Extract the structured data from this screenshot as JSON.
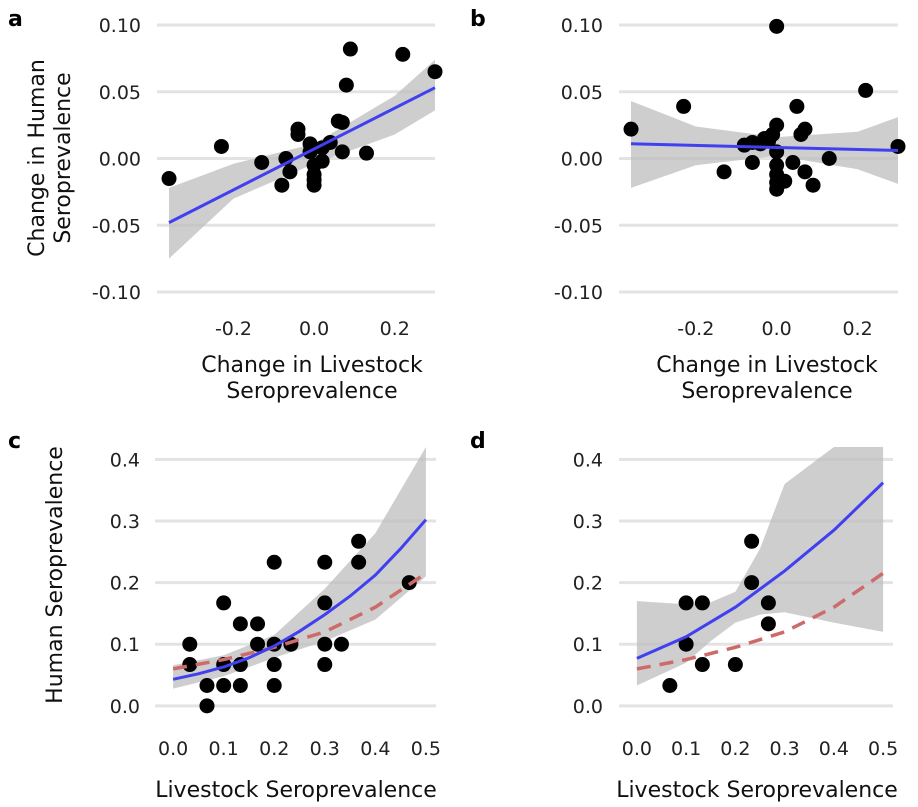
{
  "colors": {
    "fit_line": "#4040f0",
    "ref_line": "#cd6b6b",
    "ribbon": "#bdbdbd",
    "point": "#000000",
    "grid": "#e3e3e3"
  },
  "chart_data": [
    {
      "panel_label": "a",
      "type": "scatter",
      "xlabel": [
        "Change in Livestock",
        "Seroprevalence"
      ],
      "ylabel": [
        "Change in Human",
        "Seroprevalence"
      ],
      "xlim": [
        -0.37,
        0.3
      ],
      "ylim": [
        -0.1,
        0.1
      ],
      "xticks": [
        -0.2,
        0.0,
        0.2
      ],
      "xtick_labels": [
        "-0.2",
        "0.0",
        "0.2"
      ],
      "yticks": [
        -0.1,
        -0.05,
        0.0,
        0.05,
        0.1
      ],
      "ytick_labels": [
        "-0.10",
        "-0.05",
        "0.00",
        "0.05",
        "0.10"
      ],
      "points": [
        [
          -0.36,
          -0.015
        ],
        [
          -0.23,
          0.009
        ],
        [
          -0.13,
          -0.003
        ],
        [
          -0.08,
          -0.02
        ],
        [
          -0.07,
          0.0
        ],
        [
          -0.06,
          -0.01
        ],
        [
          -0.04,
          0.022
        ],
        [
          -0.04,
          0.018
        ],
        [
          -0.01,
          0.011
        ],
        [
          -0.01,
          0.005
        ],
        [
          0.0,
          -0.005
        ],
        [
          0.0,
          -0.012
        ],
        [
          0.0,
          -0.016
        ],
        [
          0.0,
          -0.02
        ],
        [
          0.02,
          0.008
        ],
        [
          0.02,
          -0.002
        ],
        [
          0.04,
          0.012
        ],
        [
          0.06,
          0.028
        ],
        [
          0.07,
          0.005
        ],
        [
          0.07,
          0.027
        ],
        [
          0.08,
          0.055
        ],
        [
          0.09,
          0.082
        ],
        [
          0.13,
          0.004
        ],
        [
          0.22,
          0.078
        ],
        [
          0.3,
          0.065
        ]
      ],
      "fit": {
        "x": [
          -0.36,
          0.3
        ],
        "y": [
          -0.048,
          0.053
        ]
      },
      "ribbon": {
        "x": [
          -0.36,
          -0.2,
          0.0,
          0.2,
          0.3
        ],
        "lower": [
          -0.075,
          -0.03,
          -0.004,
          0.018,
          0.036
        ],
        "upper": [
          -0.022,
          -0.004,
          0.011,
          0.047,
          0.074
        ]
      }
    },
    {
      "panel_label": "b",
      "type": "scatter",
      "xlabel": [
        "Change in Livestock",
        "Seroprevalence"
      ],
      "ylabel": [],
      "xlim": [
        -0.37,
        0.3
      ],
      "ylim": [
        -0.1,
        0.1
      ],
      "xticks": [
        -0.2,
        0.0,
        0.2
      ],
      "xtick_labels": [
        "-0.2",
        "0.0",
        "0.2"
      ],
      "yticks": [
        -0.1,
        -0.05,
        0.0,
        0.05,
        0.1
      ],
      "ytick_labels": [
        "-0.10",
        "-0.05",
        "0.00",
        "0.05",
        "0.10"
      ],
      "points": [
        [
          -0.36,
          0.022
        ],
        [
          -0.23,
          0.039
        ],
        [
          -0.13,
          -0.01
        ],
        [
          -0.08,
          0.01
        ],
        [
          -0.06,
          0.012
        ],
        [
          -0.06,
          -0.003
        ],
        [
          -0.04,
          0.011
        ],
        [
          -0.03,
          0.015
        ],
        [
          -0.02,
          0.013
        ],
        [
          -0.01,
          0.018
        ],
        [
          0.0,
          0.025
        ],
        [
          0.0,
          0.005
        ],
        [
          0.0,
          -0.005
        ],
        [
          0.0,
          -0.012
        ],
        [
          0.0,
          -0.018
        ],
        [
          0.0,
          -0.023
        ],
        [
          0.0,
          0.099
        ],
        [
          0.02,
          -0.017
        ],
        [
          0.04,
          -0.003
        ],
        [
          0.05,
          0.039
        ],
        [
          0.06,
          0.018
        ],
        [
          0.07,
          0.022
        ],
        [
          0.07,
          -0.01
        ],
        [
          0.09,
          -0.02
        ],
        [
          0.13,
          0.0
        ],
        [
          0.22,
          0.051
        ],
        [
          0.3,
          0.009
        ]
      ],
      "fit": {
        "x": [
          -0.36,
          0.3
        ],
        "y": [
          0.011,
          0.006
        ]
      },
      "ribbon": {
        "x": [
          -0.36,
          -0.2,
          0.0,
          0.2,
          0.3
        ],
        "lower": [
          -0.022,
          -0.005,
          0.002,
          -0.008,
          -0.019
        ],
        "upper": [
          0.043,
          0.024,
          0.016,
          0.02,
          0.031
        ]
      }
    },
    {
      "panel_label": "c",
      "type": "scatter",
      "xlabel": [
        "Livestock Seroprevalence"
      ],
      "ylabel": [
        "Human Seroprevalence"
      ],
      "xlim": [
        -0.02,
        0.52
      ],
      "ylim": [
        -0.01,
        0.42
      ],
      "xticks": [
        0.0,
        0.1,
        0.2,
        0.3,
        0.4,
        0.5
      ],
      "xtick_labels": [
        "0.0",
        "0.1",
        "0.2",
        "0.3",
        "0.4",
        "0.5"
      ],
      "yticks": [
        0.0,
        0.1,
        0.2,
        0.3,
        0.4
      ],
      "ytick_labels": [
        "0.0",
        "0.1",
        "0.2",
        "0.3",
        "0.4"
      ],
      "points": [
        [
          0.033,
          0.1
        ],
        [
          0.033,
          0.067
        ],
        [
          0.067,
          0.0
        ],
        [
          0.067,
          0.033
        ],
        [
          0.1,
          0.067
        ],
        [
          0.1,
          0.033
        ],
        [
          0.1,
          0.167
        ],
        [
          0.133,
          0.033
        ],
        [
          0.133,
          0.067
        ],
        [
          0.133,
          0.133
        ],
        [
          0.167,
          0.1
        ],
        [
          0.167,
          0.133
        ],
        [
          0.2,
          0.1
        ],
        [
          0.2,
          0.067
        ],
        [
          0.2,
          0.033
        ],
        [
          0.2,
          0.233
        ],
        [
          0.233,
          0.1
        ],
        [
          0.3,
          0.233
        ],
        [
          0.3,
          0.167
        ],
        [
          0.3,
          0.1
        ],
        [
          0.3,
          0.067
        ],
        [
          0.333,
          0.1
        ],
        [
          0.367,
          0.267
        ],
        [
          0.367,
          0.233
        ],
        [
          0.467,
          0.2
        ]
      ],
      "fit": {
        "x": [
          0.0,
          0.05,
          0.1,
          0.15,
          0.2,
          0.25,
          0.3,
          0.35,
          0.4,
          0.45,
          0.5
        ],
        "y": [
          0.043,
          0.052,
          0.063,
          0.078,
          0.097,
          0.121,
          0.148,
          0.178,
          0.212,
          0.255,
          0.302
        ]
      },
      "ref_line": {
        "x": [
          0.0,
          0.1,
          0.2,
          0.3,
          0.4,
          0.5
        ],
        "y": [
          0.06,
          0.075,
          0.095,
          0.12,
          0.16,
          0.215
        ]
      },
      "ribbon": {
        "x": [
          0.0,
          0.1,
          0.2,
          0.3,
          0.4,
          0.5
        ],
        "lower": [
          0.028,
          0.048,
          0.078,
          0.105,
          0.14,
          0.21
        ],
        "upper": [
          0.066,
          0.082,
          0.115,
          0.19,
          0.28,
          0.42
        ]
      }
    },
    {
      "panel_label": "d",
      "type": "scatter",
      "xlabel": [
        "Livestock Seroprevalence"
      ],
      "ylabel": [],
      "xlim": [
        -0.02,
        0.52
      ],
      "ylim": [
        -0.01,
        0.42
      ],
      "xticks": [
        0.0,
        0.1,
        0.2,
        0.3,
        0.4,
        0.5
      ],
      "xtick_labels": [
        "0.0",
        "0.1",
        "0.2",
        "0.3",
        "0.4",
        "0.5"
      ],
      "yticks": [
        0.0,
        0.1,
        0.2,
        0.3,
        0.4
      ],
      "ytick_labels": [
        "0.0",
        "0.1",
        "0.2",
        "0.3",
        "0.4"
      ],
      "points": [
        [
          0.067,
          0.033
        ],
        [
          0.1,
          0.167
        ],
        [
          0.1,
          0.1
        ],
        [
          0.133,
          0.167
        ],
        [
          0.133,
          0.067
        ],
        [
          0.2,
          0.067
        ],
        [
          0.233,
          0.267
        ],
        [
          0.233,
          0.2
        ],
        [
          0.267,
          0.167
        ],
        [
          0.267,
          0.133
        ]
      ],
      "fit": {
        "x": [
          0.0,
          0.1,
          0.2,
          0.3,
          0.4,
          0.5
        ],
        "y": [
          0.077,
          0.112,
          0.16,
          0.219,
          0.285,
          0.362
        ]
      },
      "ref_line": {
        "x": [
          0.0,
          0.1,
          0.2,
          0.3,
          0.4,
          0.5
        ],
        "y": [
          0.06,
          0.075,
          0.095,
          0.12,
          0.16,
          0.215
        ]
      },
      "ribbon": {
        "x": [
          0.0,
          0.1,
          0.15,
          0.2,
          0.25,
          0.3,
          0.4,
          0.5
        ],
        "lower": [
          0.033,
          0.07,
          0.105,
          0.135,
          0.148,
          0.152,
          0.135,
          0.12
        ],
        "upper": [
          0.17,
          0.165,
          0.168,
          0.185,
          0.255,
          0.36,
          0.42,
          0.42
        ]
      }
    }
  ]
}
